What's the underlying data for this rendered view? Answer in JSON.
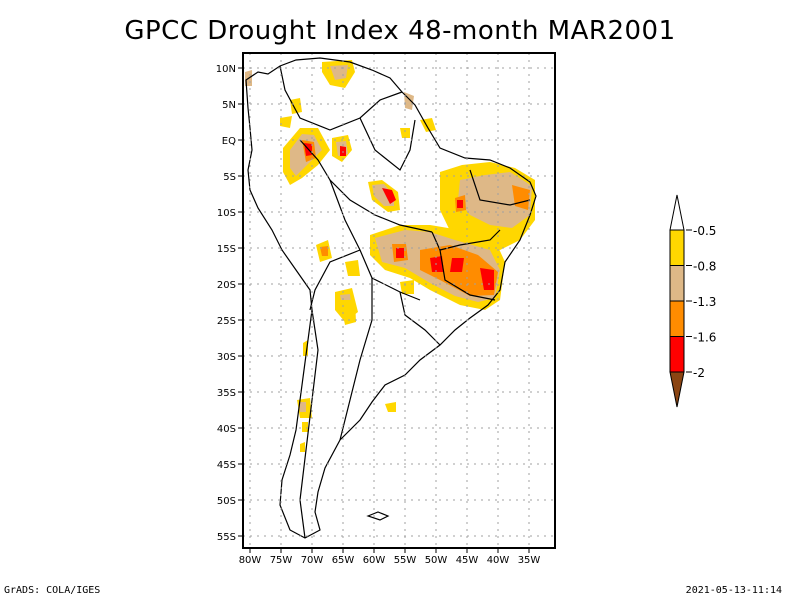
{
  "title": "GPCC Drought Index 48-month MAR2001",
  "footer": {
    "left": "GrADS: COLA/IGES",
    "right": "2021-05-13-11:14"
  },
  "map": {
    "region": "South America",
    "variable": "Drought Index",
    "period": "48-month",
    "date": "MAR2001",
    "lat_labels": [
      "10N",
      "5N",
      "EQ",
      "5S",
      "10S",
      "15S",
      "20S",
      "25S",
      "30S",
      "35S",
      "40S",
      "45S",
      "50S",
      "55S"
    ],
    "lon_labels": [
      "80W",
      "75W",
      "70W",
      "65W",
      "60W",
      "55W",
      "50W",
      "45W",
      "40W",
      "35W"
    ],
    "lat_range": [
      -56,
      12
    ],
    "lon_range": [
      -81,
      -31
    ]
  },
  "legend": {
    "bins": [
      {
        "label": "-0.5",
        "color": "#ffffff"
      },
      {
        "label": "-0.8",
        "color": "#ffd700"
      },
      {
        "label": "-1.3",
        "color": "#deb887"
      },
      {
        "label": "-1.6",
        "color": "#ff8c00"
      },
      {
        "label": "-2",
        "color": "#ff0000"
      },
      {
        "label": "",
        "color": "#8b4513"
      }
    ],
    "tick_labels": [
      "-0.5",
      "-0.8",
      "-1.3",
      "-1.6",
      "-2"
    ]
  },
  "colors": {
    "level_05": "#ffd700",
    "level_08": "#deb887",
    "level_13": "#ff8c00",
    "level_16": "#ff0000",
    "level_2": "#8b4513",
    "grid": "#a0a0a0",
    "coast": "#000000"
  }
}
